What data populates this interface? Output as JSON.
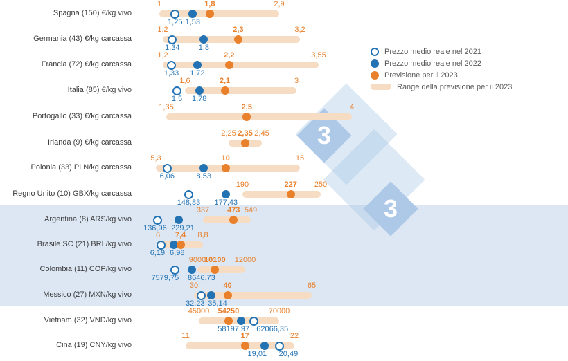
{
  "watermark": {
    "char": "3"
  },
  "legend": {
    "items": [
      {
        "label": "Prezzo medio reale nel 2021",
        "marker": "open-circle-blue"
      },
      {
        "label": "Prezzo medio reale nel 2022",
        "marker": "filled-circle-blue"
      },
      {
        "label": "Previsione per il 2023",
        "marker": "filled-circle-orange"
      },
      {
        "label": "Range della previsione per il 2023",
        "marker": "range-bar"
      }
    ]
  },
  "colors": {
    "blue_price": "#2373b4",
    "orange_forecast": "#e8802c",
    "range_bar": "#f6dcc3",
    "highlight_band": "#dce7f3",
    "watermark_blue": "#aec9e8",
    "row_label_text": "#3d3d3d",
    "legend_text": "#595959"
  },
  "chart_data": {
    "type": "dot-range",
    "description": "Pig price per country: real average price 2021 (open circle), real average price 2022 (filled blue dot), forecast for 2023 (orange dot) and forecast range for 2023 (pale orange bar). Each row uses its own currency/scale.",
    "legend_position": "top-right",
    "rows": [
      {
        "label": "Spagna (150) €/kg vivo",
        "range_min": 1,
        "range_max": 2.9,
        "range_min_label": "1",
        "range_max_label": "2,9",
        "v2021": 1.25,
        "v2021_label": "1,25",
        "v2022": 1.53,
        "v2022_label": "1,53",
        "v2023": 1.8,
        "v2023_label": "1,8"
      },
      {
        "label": "Germania (43) €/kg carcassa",
        "range_min": 1.2,
        "range_max": 3.2,
        "range_min_label": "1,2",
        "range_max_label": "3,2",
        "v2021": 1.34,
        "v2021_label": "1,34",
        "v2022": 1.8,
        "v2022_label": "1,8",
        "v2023": 2.3,
        "v2023_label": "2,3"
      },
      {
        "label": "Francia (72) €/kg carcassa",
        "range_min": 1.2,
        "range_max": 3.55,
        "range_min_label": "1,2",
        "range_max_label": "3,55",
        "v2021": 1.33,
        "v2021_label": "1,33",
        "v2022": 1.72,
        "v2022_label": "1,72",
        "v2023": 2.2,
        "v2023_label": "2,2"
      },
      {
        "label": "Italia (85) €/kg vivo",
        "range_min": 1.6,
        "range_max": 3,
        "range_min_label": "1,6",
        "range_max_label": "3",
        "v2021": 1.5,
        "v2021_label": "1,5",
        "v2022": 1.78,
        "v2022_label": "1,78",
        "v2023": 2.1,
        "v2023_label": "2,1"
      },
      {
        "label": "Portogallo (33) €/kg carcassa",
        "range_min": 1.35,
        "range_max": 4,
        "range_min_label": "1,35",
        "range_max_label": "4",
        "v2021": null,
        "v2021_label": null,
        "v2022": null,
        "v2022_label": null,
        "v2023": 2.5,
        "v2023_label": "2,5"
      },
      {
        "label": "Irlanda (9) €/kg carcassa",
        "range_min": 2.25,
        "range_max": 2.45,
        "range_min_label": "2,25",
        "range_max_label": "2,45",
        "v2021": null,
        "v2021_label": null,
        "v2022": null,
        "v2022_label": null,
        "v2023": 2.35,
        "v2023_label": "2,35"
      },
      {
        "label": "Polonia (33) PLN/kg carcassa",
        "range_min": 5.3,
        "range_max": 15,
        "range_min_label": "5,3",
        "range_max_label": "15",
        "v2021": 6.06,
        "v2021_label": "6,06",
        "v2022": 8.53,
        "v2022_label": "8,53",
        "v2023": 10,
        "v2023_label": "10"
      },
      {
        "label": "Regno Unito (10) GBX/kg carcassa",
        "range_min": 190,
        "range_max": 250,
        "range_min_label": "190",
        "range_max_label": "250",
        "v2021": 148.83,
        "v2021_label": "148,83",
        "v2022": 177.43,
        "v2022_label": "177,43",
        "v2023": 227,
        "v2023_label": "227"
      },
      {
        "label": "Argentina (8) ARS/kg vivo",
        "range_min": 337,
        "range_max": 549,
        "range_min_label": "337",
        "range_max_label": "549",
        "v2021": 136.96,
        "v2021_label": "136,96",
        "v2022": 229.21,
        "v2022_label": "229,21",
        "v2023": 473,
        "v2023_label": "473"
      },
      {
        "label": "Brasile SC (21) BRL/kg vivo",
        "range_min": 6,
        "range_max": 8.8,
        "range_min_label": "6",
        "range_max_label": "8,8",
        "v2021": 6.19,
        "v2021_label": "6,19",
        "v2022": 6.98,
        "v2022_label": "6,98",
        "v2023": 7.4,
        "v2023_label": "7,4"
      },
      {
        "label": "Colombia (11) COP/kg vivo",
        "range_min": 9000,
        "range_max": 12000,
        "range_min_label": "9000",
        "range_max_label": "12000",
        "v2021": 7579.75,
        "v2021_label": "7579,75",
        "v2022": 8646.73,
        "v2022_label": "8646,73",
        "v2023": 10100,
        "v2023_label": "10100"
      },
      {
        "label": "Messico (27) MXN/kg vivo",
        "range_min": 30,
        "range_max": 65,
        "range_min_label": "30",
        "range_max_label": "65",
        "v2021": 32.23,
        "v2021_label": "32,23",
        "v2022": 35.14,
        "v2022_label": "35,14",
        "v2023": 40,
        "v2023_label": "40"
      },
      {
        "label": "Vietnam (32) VND/kg vivo",
        "range_min": 45000,
        "range_max": 70000,
        "range_min_label": "45000",
        "range_max_label": "70000",
        "v2021": 62066.35,
        "v2021_label": "62066,35",
        "v2022": 58197.97,
        "v2022_label": "58197,97",
        "v2023": 54250,
        "v2023_label": "54250"
      },
      {
        "label": "Cina (19) CNY/kg vivo",
        "range_min": 11,
        "range_max": 22,
        "range_min_label": "11",
        "range_max_label": "22",
        "v2021": 20.49,
        "v2021_label": "20,49",
        "v2022": 19.01,
        "v2022_label": "19,01",
        "v2023": 17,
        "v2023_label": "17"
      }
    ]
  }
}
